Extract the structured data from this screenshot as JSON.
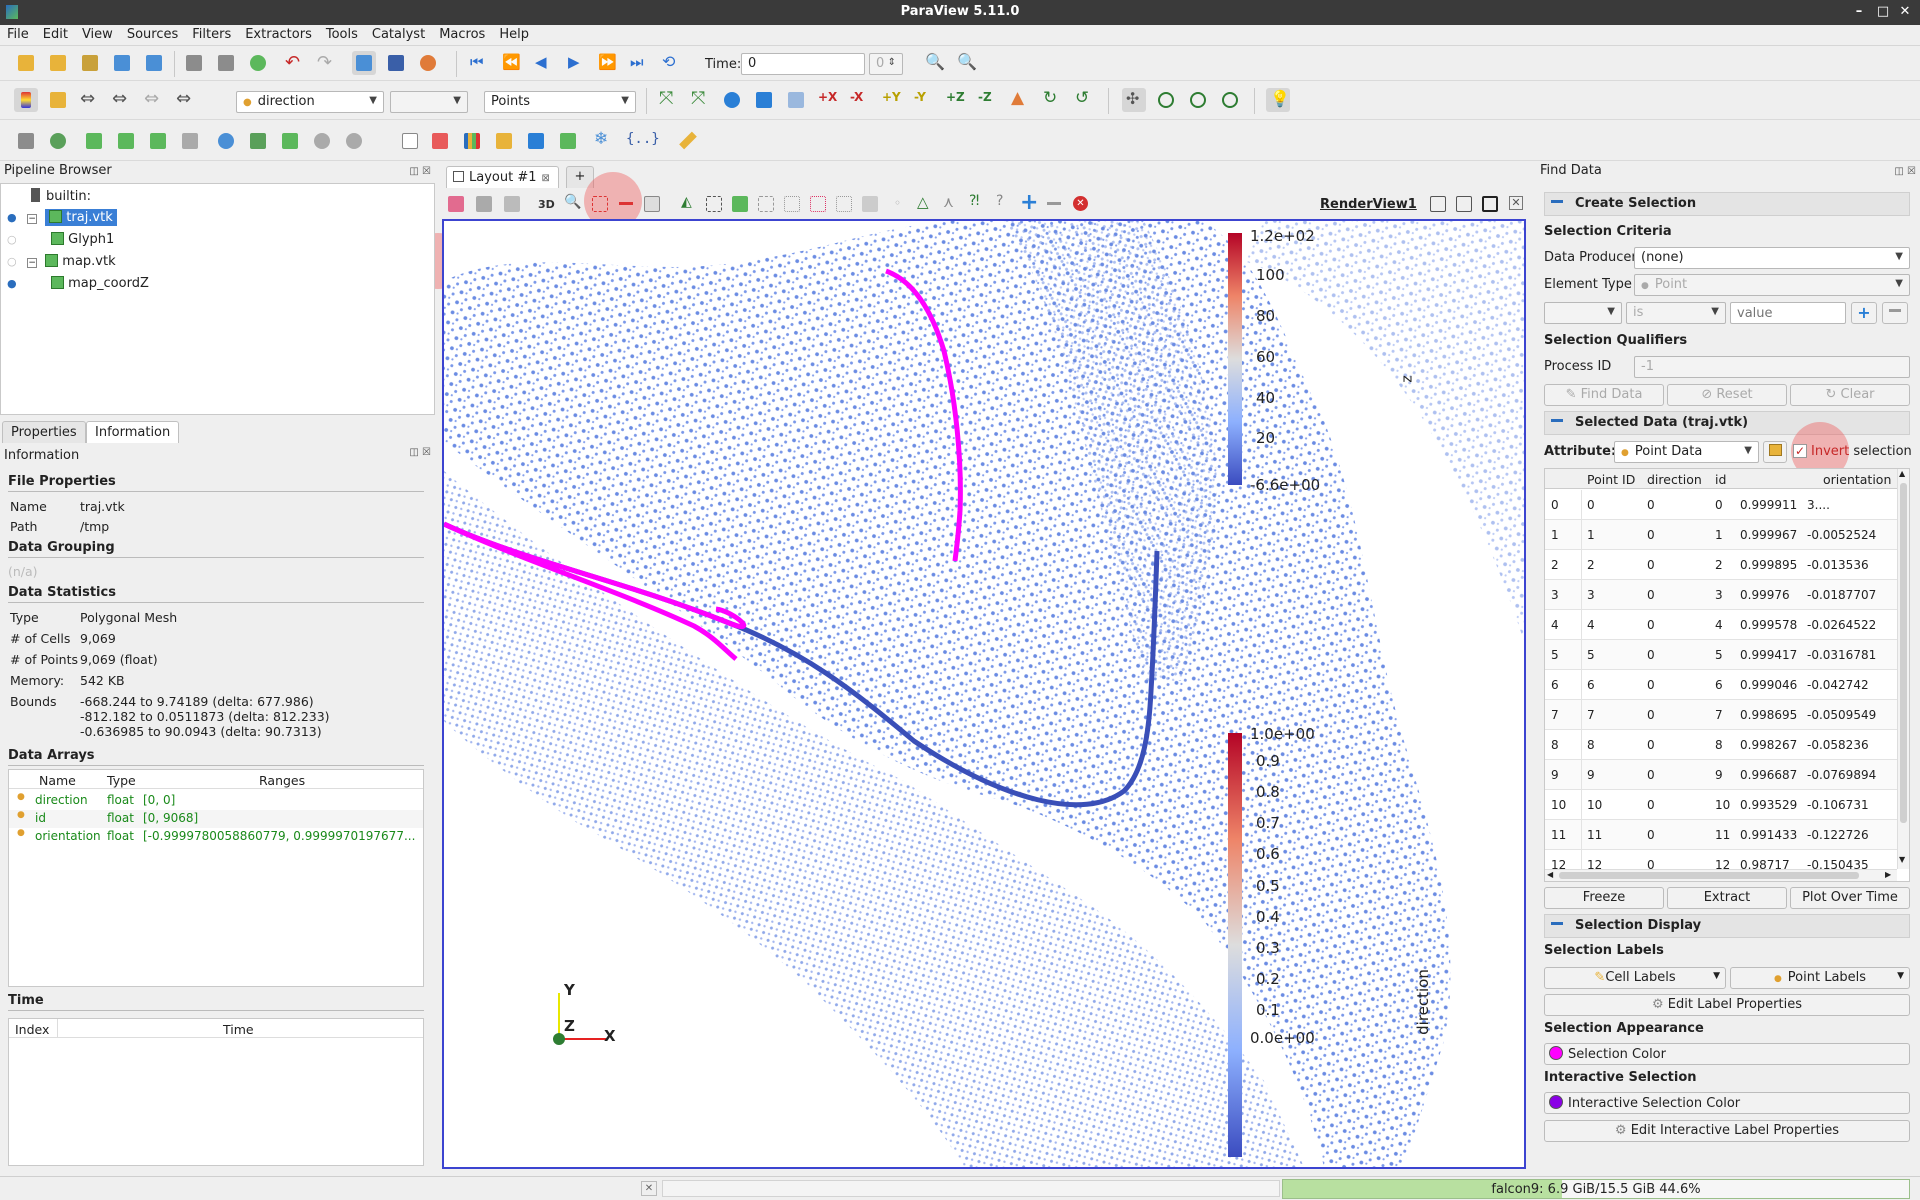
{
  "window": {
    "title": "ParaView 5.11.0"
  },
  "menu": [
    "File",
    "Edit",
    "View",
    "Sources",
    "Filters",
    "Extractors",
    "Tools",
    "Catalyst",
    "Macros",
    "Help"
  ],
  "toolbar": {
    "time_label": "Time:",
    "time_value": "0",
    "time_index": "0",
    "color_array": "direction",
    "component": "",
    "representation": "Points"
  },
  "pipeline": {
    "title": "Pipeline Browser",
    "items": [
      {
        "label": "builtin:",
        "type": "server"
      },
      {
        "label": "traj.vtk",
        "type": "source",
        "selected": true,
        "visible": true
      },
      {
        "label": "Glyph1",
        "type": "filter",
        "visible": false
      },
      {
        "label": "map.vtk",
        "type": "source",
        "visible": false
      },
      {
        "label": "map_coordZ",
        "type": "filter",
        "visible": true
      }
    ]
  },
  "left_tabs": [
    "Properties",
    "Information"
  ],
  "info": {
    "title": "Information",
    "file_properties": "File Properties",
    "name_label": "Name",
    "name_value": "traj.vtk",
    "path_label": "Path",
    "path_value": "/tmp",
    "data_grouping": "Data Grouping",
    "grouping_value": "(n/a)",
    "data_statistics": "Data Statistics",
    "type_label": "Type",
    "type_value": "Polygonal Mesh",
    "cells_label": "# of Cells",
    "cells_value": "9,069",
    "points_label": "# of Points",
    "points_value": "9,069 (float)",
    "memory_label": "Memory:",
    "memory_value": "542 KB",
    "bounds_label": "Bounds",
    "bounds": [
      "-668.244 to 9.74189 (delta: 677.986)",
      "-812.182 to 0.0511873 (delta: 812.233)",
      "-0.636985 to 90.0943 (delta: 90.7313)"
    ],
    "data_arrays": "Data Arrays",
    "array_headers": [
      "Name",
      "Type",
      "Ranges"
    ],
    "arrays": [
      {
        "name": "direction",
        "type": "float",
        "range": "[0, 0]"
      },
      {
        "name": "id",
        "type": "float",
        "range": "[0, 9068]"
      },
      {
        "name": "orientation",
        "type": "float",
        "range": "[-0.9999780058860779, 0.9999970197677..."
      }
    ],
    "time": "Time",
    "time_headers": [
      "Index",
      "Time"
    ]
  },
  "view": {
    "layout_tab": "Layout #1",
    "add_tab": "+",
    "render_view": "RenderView1",
    "mode_3d": "3D",
    "z_legend": {
      "title": "z",
      "labels": [
        "1.2e+02",
        "100",
        "80",
        "60",
        "40",
        "20",
        "-6.6e+00"
      ]
    },
    "direction_legend": {
      "title": "direction",
      "labels": [
        "1.0e+00",
        "0.9",
        "0.8",
        "0.7",
        "0.6",
        "0.5",
        "0.4",
        "0.3",
        "0.2",
        "0.1",
        "0.0e+00"
      ]
    },
    "axes": {
      "y": "Y",
      "z": "Z",
      "x": "X"
    },
    "colors": {
      "selection": "#ff00ff",
      "points": "#5a7fe0",
      "trajectory": "#3a4fb8"
    }
  },
  "find_data": {
    "title": "Find Data",
    "create_selection": "Create Selection",
    "selection_criteria": "Selection Criteria",
    "data_producer_label": "Data Producer",
    "data_producer": "(none)",
    "element_type_label": "Element Type",
    "element_type": "Point",
    "criteria_op": "is",
    "criteria_value_placeholder": "value",
    "selection_qualifiers": "Selection Qualifiers",
    "process_id_label": "Process ID",
    "process_id": "-1",
    "find_data_btn": "Find Data",
    "reset_btn": "Reset",
    "clear_btn": "Clear",
    "selected_data": "Selected Data (traj.vtk)",
    "attribute_label": "Attribute:",
    "attribute": "Point Data",
    "invert_word": "Invert",
    "invert_rest": "selection",
    "invert_checked": true,
    "table_headers": [
      "Point ID",
      "direction",
      "id",
      "",
      "orientation"
    ],
    "rows": [
      [
        "0",
        "0",
        "0",
        "0",
        "0.999911",
        "3...."
      ],
      [
        "1",
        "1",
        "0",
        "1",
        "0.999967",
        "-0.0052524"
      ],
      [
        "2",
        "2",
        "0",
        "2",
        "0.999895",
        "-0.013536"
      ],
      [
        "3",
        "3",
        "0",
        "3",
        "0.99976",
        "-0.0187707"
      ],
      [
        "4",
        "4",
        "0",
        "4",
        "0.999578",
        "-0.0264522"
      ],
      [
        "5",
        "5",
        "0",
        "5",
        "0.999417",
        "-0.0316781"
      ],
      [
        "6",
        "6",
        "0",
        "6",
        "0.999046",
        "-0.042742"
      ],
      [
        "7",
        "7",
        "0",
        "7",
        "0.998695",
        "-0.0509549"
      ],
      [
        "8",
        "8",
        "0",
        "8",
        "0.998267",
        "-0.058236"
      ],
      [
        "9",
        "9",
        "0",
        "9",
        "0.996687",
        "-0.0769894"
      ],
      [
        "10",
        "10",
        "0",
        "10",
        "0.993529",
        "-0.106731"
      ],
      [
        "11",
        "11",
        "0",
        "11",
        "0.991433",
        "-0.122726"
      ],
      [
        "12",
        "12",
        "0",
        "12",
        "0.98717",
        "-0.150435"
      ]
    ],
    "freeze_btn": "Freeze",
    "extract_btn": "Extract",
    "plot_over_time_btn": "Plot Over Time",
    "selection_display": "Selection Display",
    "selection_labels": "Selection Labels",
    "cell_labels_btn": "Cell Labels",
    "point_labels_btn": "Point Labels",
    "edit_label_props_btn": "Edit Label Properties",
    "selection_appearance": "Selection Appearance",
    "selection_color_btn": "Selection Color",
    "selection_color": "#ff00ff",
    "interactive_selection": "Interactive Selection",
    "interactive_color_btn": "Interactive Selection Color",
    "interactive_color": "#8a00e6",
    "edit_interactive_label_btn": "Edit Interactive Label Properties"
  },
  "status": {
    "memory": "falcon9: 6.9 GiB/15.5 GiB 44.6%",
    "memory_fraction": 0.446
  }
}
